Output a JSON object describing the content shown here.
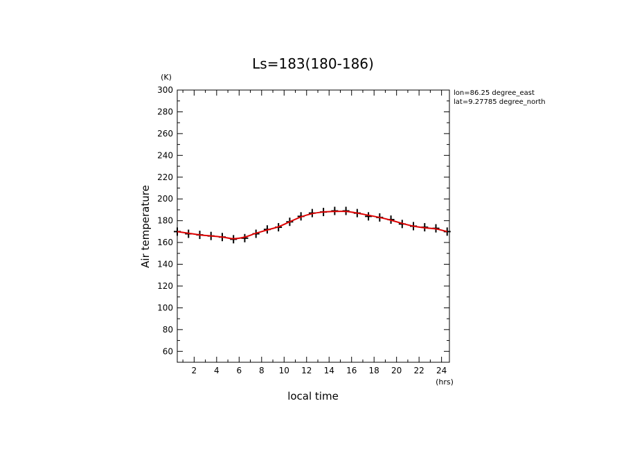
{
  "chart_data": {
    "type": "line",
    "title": "Ls=183(180-186)",
    "xlabel": "local time",
    "xunit": "(hrs)",
    "ylabel": "Air temperature",
    "yunit": "(K)",
    "xlim": [
      0.5,
      24.7
    ],
    "ylim": [
      50,
      300
    ],
    "xticks": [
      2,
      4,
      6,
      8,
      10,
      12,
      14,
      16,
      18,
      20,
      22,
      24
    ],
    "yticks": [
      60,
      80,
      100,
      120,
      140,
      160,
      180,
      200,
      220,
      240,
      260,
      280,
      300
    ],
    "grid": false,
    "annotations": [
      "lon=86.25 degree_east",
      "lat=9.27785 degree_north"
    ],
    "series": [
      {
        "style": "markers",
        "color": "#000000",
        "x": [
          0.5,
          1.5,
          2.5,
          3.5,
          4.5,
          5.5,
          6.5,
          7.5,
          8.5,
          9.5,
          10.5,
          11.5,
          12.5,
          13.5,
          14.5,
          15.5,
          16.5,
          17.5,
          18.5,
          19.5,
          20.5,
          21.5,
          22.5,
          23.5,
          24.5
        ],
        "y": [
          170,
          168,
          167,
          166,
          165,
          163,
          164,
          168,
          172,
          174,
          179,
          184,
          187,
          188,
          189,
          189,
          187,
          184,
          183,
          181,
          177,
          175,
          174,
          173,
          170
        ]
      },
      {
        "style": "line",
        "color": "#dd0000",
        "x": [
          0.5,
          1.5,
          2.5,
          3.5,
          4.5,
          5.5,
          6.5,
          7.5,
          8.5,
          9.5,
          10.5,
          11.5,
          12.5,
          13.5,
          14.5,
          15.5,
          16.5,
          17.5,
          18.5,
          19.5,
          20.5,
          21.5,
          22.5,
          23.5,
          24.5
        ],
        "y": [
          170,
          168.5,
          167,
          166,
          165,
          163.5,
          165,
          168.5,
          171.5,
          174.5,
          179,
          183.5,
          186.5,
          188,
          188.5,
          188.5,
          187,
          185,
          183,
          180.5,
          177.5,
          175,
          173.5,
          172.5,
          170
        ]
      }
    ]
  }
}
